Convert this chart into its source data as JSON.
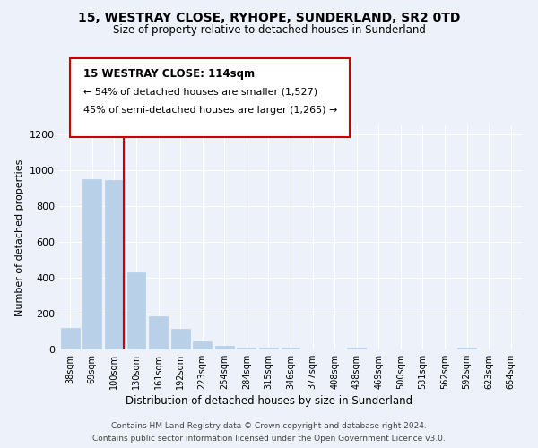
{
  "title": "15, WESTRAY CLOSE, RYHOPE, SUNDERLAND, SR2 0TD",
  "subtitle": "Size of property relative to detached houses in Sunderland",
  "xlabel": "Distribution of detached houses by size in Sunderland",
  "ylabel": "Number of detached properties",
  "categories": [
    "38sqm",
    "69sqm",
    "100sqm",
    "130sqm",
    "161sqm",
    "192sqm",
    "223sqm",
    "254sqm",
    "284sqm",
    "315sqm",
    "346sqm",
    "377sqm",
    "408sqm",
    "438sqm",
    "469sqm",
    "500sqm",
    "531sqm",
    "562sqm",
    "592sqm",
    "623sqm",
    "654sqm"
  ],
  "values": [
    120,
    950,
    945,
    430,
    185,
    115,
    47,
    18,
    12,
    12,
    12,
    0,
    0,
    10,
    0,
    0,
    0,
    0,
    10,
    0,
    0
  ],
  "bar_color": "#b8d0e8",
  "bar_edge_color": "#b8d0e8",
  "marker_line_color": "#cc0000",
  "ylim": [
    0,
    1250
  ],
  "yticks": [
    0,
    200,
    400,
    600,
    800,
    1000,
    1200
  ],
  "annotation_title": "15 WESTRAY CLOSE: 114sqm",
  "annotation_line1": "← 54% of detached houses are smaller (1,527)",
  "annotation_line2": "45% of semi-detached houses are larger (1,265) →",
  "footer_line1": "Contains HM Land Registry data © Crown copyright and database right 2024.",
  "footer_line2": "Contains public sector information licensed under the Open Government Licence v3.0.",
  "background_color": "#edf2fa",
  "plot_background": "#edf2fa"
}
